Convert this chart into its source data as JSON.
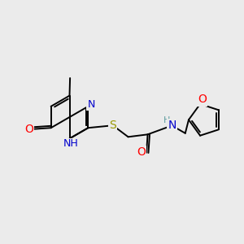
{
  "background_color": "#ebebeb",
  "bond_color": "#000000",
  "atom_colors": {
    "N": "#0000cc",
    "O": "#ff0000",
    "S": "#999900",
    "C": "#000000",
    "H": "#5f9ea0"
  },
  "bond_width": 1.4,
  "font_size": 9,
  "figsize": [
    3.0,
    3.0
  ],
  "dpi": 100
}
